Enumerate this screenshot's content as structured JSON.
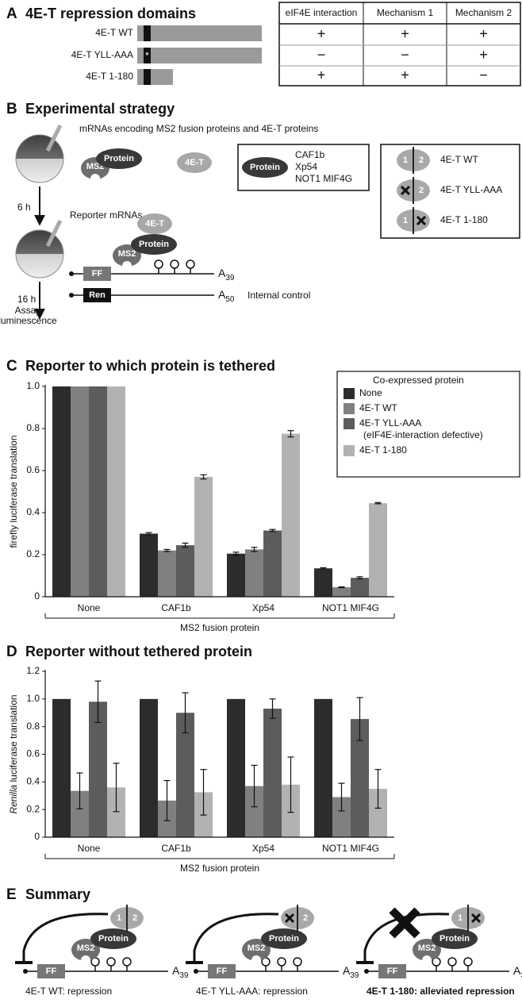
{
  "panel_a": {
    "letter": "A",
    "title": "4E-T repression domains",
    "constructs": [
      "4E-T WT",
      "4E-T YLL-AAA",
      "4E-T 1-180"
    ],
    "mutation_mark": "*",
    "table": {
      "header": [
        "eIF4E interaction",
        "Mechanism 1",
        "Mechanism 2"
      ],
      "rows": [
        [
          "+",
          "+",
          "+"
        ],
        [
          "−",
          "−",
          "+"
        ],
        [
          "+",
          "+",
          "−"
        ]
      ]
    }
  },
  "panel_b": {
    "letter": "B",
    "title": "Experimental strategy",
    "injection_1": "mRNAs encoding MS2 fusion proteins and 4E-T proteins",
    "injection_2": "Reporter mRNAs",
    "time_1": "6 h",
    "time_2": "16 h",
    "assay": [
      "Assay",
      "luminescence"
    ],
    "ms2": "MS2",
    "protein": "Protein",
    "e4t": "4E-T",
    "protein_list": [
      "CAF1b",
      "Xp54",
      "NOT1 MIF4G"
    ],
    "domain_1": "1",
    "domain_2": "2",
    "variants": [
      "4E-T WT",
      "4E-T YLL-AAA",
      "4E-T 1-180"
    ],
    "ff": "FF",
    "ren": "Ren",
    "polya_1": {
      "base": "A",
      "sub": "39"
    },
    "polya_2": {
      "base": "A",
      "sub": "50"
    },
    "control": "Internal control"
  },
  "chart_data": [
    {
      "type": "bar",
      "letter": "C",
      "title": "Reporter to which protein is tethered",
      "ylabel": "firefly luciferase translation",
      "xlabel": "MS2 fusion protein",
      "categories": [
        "None",
        "CAF1b",
        "Xp54",
        "NOT1 MIF4G"
      ],
      "legend_title": "Co-expressed protein",
      "series": [
        {
          "name": "None",
          "color": "#2c2c2c",
          "values": [
            1,
            0.3,
            0.205,
            0.135
          ],
          "errors": [
            null,
            0.005,
            0.007,
            0.003
          ]
        },
        {
          "name": "4E-T WT",
          "color": "#808080",
          "values": [
            1,
            0.22,
            0.225,
            0.045
          ],
          "errors": [
            null,
            0.005,
            0.01,
            0.002
          ]
        },
        {
          "name": "4E-T YLL-AAA",
          "note": "(eIF4E-interaction defective)",
          "color": "#5c5c5c",
          "values": [
            1,
            0.245,
            0.315,
            0.09
          ],
          "errors": [
            null,
            0.01,
            0.005,
            0.005
          ]
        },
        {
          "name": "4E-T 1-180",
          "color": "#b2b2b2",
          "values": [
            1,
            0.57,
            0.775,
            0.445
          ],
          "errors": [
            null,
            0.01,
            0.015,
            0.003
          ]
        }
      ],
      "ylim": [
        0,
        1
      ],
      "yticks": [
        0,
        0.2,
        0.4,
        0.6,
        0.8,
        {
          "value": 1,
          "label": "1.0"
        }
      ]
    },
    {
      "type": "bar",
      "letter": "D",
      "title": "Reporter without tethered protein",
      "ylabel_italic": "Renilla",
      "ylabel": " luciferase translation",
      "xlabel": "MS2 fusion protein",
      "categories": [
        "None",
        "CAF1b",
        "Xp54",
        "NOT1 MIF4G"
      ],
      "series": [
        {
          "name": "None",
          "color": "#2c2c2c",
          "values": [
            1,
            1,
            1,
            1
          ],
          "errors": [
            null,
            null,
            null,
            null
          ]
        },
        {
          "name": "4E-T WT",
          "color": "#808080",
          "values": [
            0.335,
            0.265,
            0.37,
            0.29
          ],
          "errors": [
            0.13,
            0.145,
            0.15,
            0.1
          ]
        },
        {
          "name": "4E-T YLL-AAA",
          "color": "#5c5c5c",
          "values": [
            0.98,
            0.9,
            0.93,
            0.855
          ],
          "errors": [
            0.15,
            0.145,
            0.07,
            0.155
          ]
        },
        {
          "name": "4E-T 1-180",
          "color": "#b2b2b2",
          "values": [
            0.36,
            0.325,
            0.38,
            0.35
          ],
          "errors": [
            0.175,
            0.165,
            0.2,
            0.14
          ]
        }
      ],
      "ylim": [
        0,
        1.2
      ],
      "yticks": [
        0,
        0.2,
        0.4,
        0.6,
        0.8,
        {
          "value": 1,
          "label": "1.0"
        },
        1.2
      ]
    }
  ],
  "panel_e": {
    "letter": "E",
    "title": "Summary",
    "captions": [
      "4E-T WT: repression",
      "4E-T YLL-AAA: repression",
      "4E-T 1-180: alleviated repression"
    ]
  }
}
